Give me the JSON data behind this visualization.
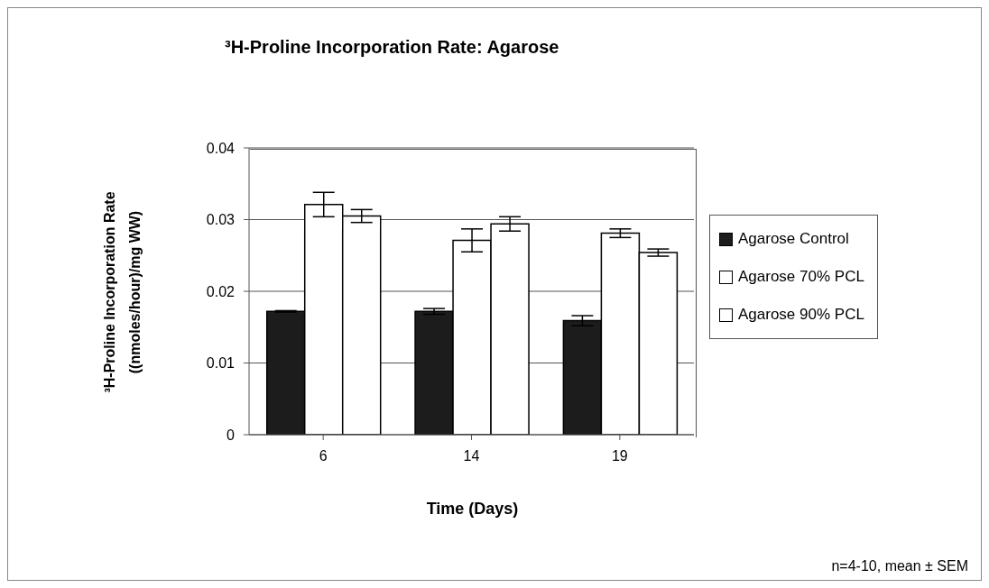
{
  "chart_data": {
    "type": "bar",
    "title": "³H-Proline Incorporation Rate: Agarose",
    "xlabel": "Time (Days)",
    "ylabel": "³H-Proline Incorporation Rate\n((nmoles/hour)/mg WW)",
    "categories": [
      "6",
      "14",
      "19"
    ],
    "series": [
      {
        "name": "Agarose Control",
        "color": "#1c1c1c",
        "values": [
          0.0172,
          0.0172,
          0.0159
        ],
        "errors": [
          0.0001,
          0.0004,
          0.0007
        ]
      },
      {
        "name": "Agarose 70% PCL",
        "color": "#ffffff",
        "values": [
          0.0321,
          0.0271,
          0.0281
        ],
        "errors": [
          0.0017,
          0.0016,
          0.0006
        ]
      },
      {
        "name": "Agarose 90% PCL",
        "color": "#ffffff",
        "values": [
          0.0305,
          0.0294,
          0.0254
        ],
        "errors": [
          0.0009,
          0.001,
          0.0005
        ]
      }
    ],
    "ylim": [
      0,
      0.04
    ],
    "yticks": [
      0,
      0.01,
      0.02,
      0.03,
      0.04
    ],
    "grid": "y",
    "legend": "right",
    "annotations": [
      "n=4-10, mean ± SEM"
    ]
  }
}
